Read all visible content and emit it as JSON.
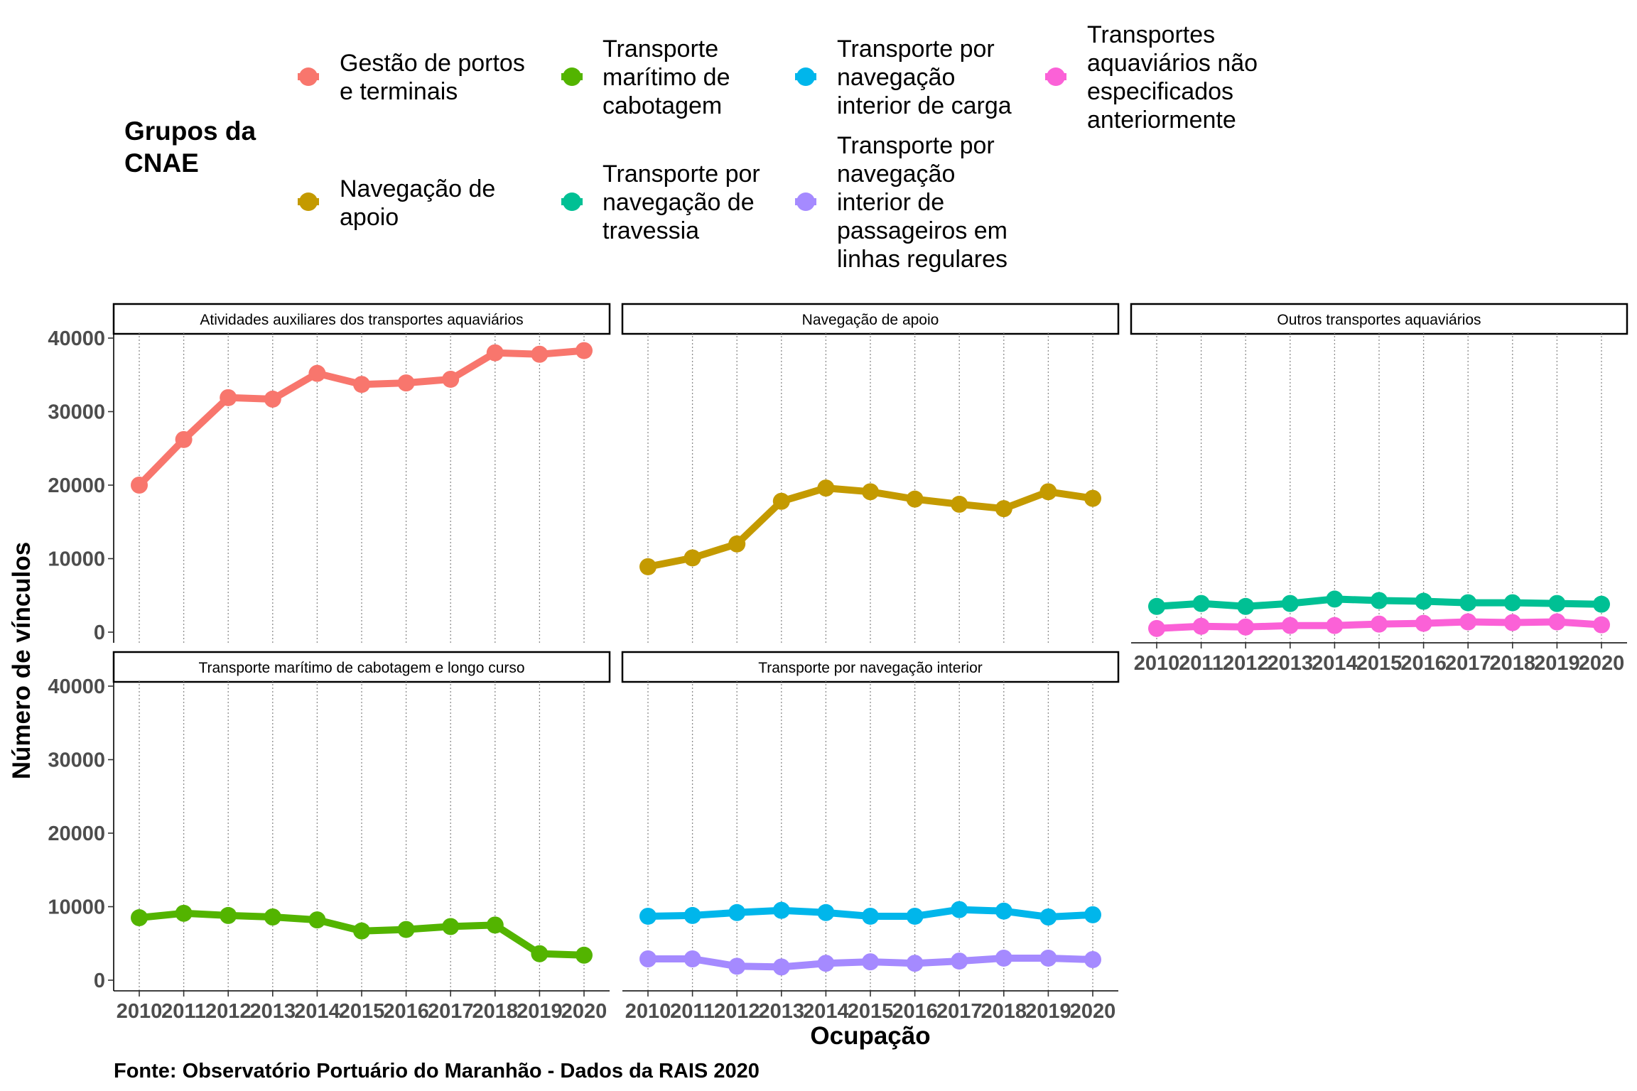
{
  "chart_data": {
    "type": "line",
    "xlabel": "Ocupação",
    "ylabel": "Número de vínculos",
    "caption": "Fonte: Observatório Portuário do Maranhão - Dados da RAIS 2020",
    "legend": {
      "title": [
        "Grupos da",
        "CNAE"
      ],
      "placement": "top",
      "entries": [
        {
          "key": "gestao",
          "lines": [
            "Gestão de portos",
            "e terminais"
          ],
          "color": "#F8766D"
        },
        {
          "key": "navapoio",
          "lines": [
            "Navegação de",
            "apoio"
          ],
          "color": "#C49A00"
        },
        {
          "key": "cabotagem",
          "lines": [
            "Transporte",
            "marítimo de",
            "cabotagem"
          ],
          "color": "#53B400"
        },
        {
          "key": "travessia",
          "lines": [
            "Transporte por",
            "navegação de",
            "travessia"
          ],
          "color": "#00C094"
        },
        {
          "key": "carga",
          "lines": [
            "Transporte por",
            "navegação",
            "interior de carga"
          ],
          "color": "#00B6EB"
        },
        {
          "key": "passageiros",
          "lines": [
            "Transporte por",
            "navegação",
            "interior de",
            "passageiros em",
            "linhas regulares"
          ],
          "color": "#A58AFF"
        },
        {
          "key": "naoespec",
          "lines": [
            "Transportes",
            "aquaviários não",
            "especificados",
            "anteriormente"
          ],
          "color": "#FB61D7"
        }
      ]
    },
    "x": [
      2010,
      2011,
      2012,
      2013,
      2014,
      2015,
      2016,
      2017,
      2018,
      2019,
      2020
    ],
    "ylim": [
      0,
      40000
    ],
    "yticks": [
      0,
      10000,
      20000,
      30000,
      40000
    ],
    "grid": "vertical dotted",
    "panels": [
      {
        "title": "Atividades auxiliares dos transportes aquaviários",
        "series": [
          {
            "group": "gestao",
            "values": [
              20000,
              26200,
              31900,
              31700,
              35200,
              33700,
              33900,
              34400,
              38000,
              37800,
              38300
            ]
          }
        ]
      },
      {
        "title": "Navegação de apoio",
        "series": [
          {
            "group": "navapoio",
            "values": [
              8900,
              10100,
              12000,
              17800,
              19600,
              19100,
              18100,
              17400,
              16800,
              19100,
              18200
            ]
          }
        ]
      },
      {
        "title": "Outros transportes aquaviários",
        "series": [
          {
            "group": "travessia",
            "values": [
              3500,
              3900,
              3500,
              3900,
              4500,
              4300,
              4200,
              4000,
              4000,
              3900,
              3800
            ]
          },
          {
            "group": "naoespec",
            "values": [
              500,
              800,
              700,
              900,
              900,
              1100,
              1200,
              1400,
              1300,
              1400,
              1000
            ]
          }
        ]
      },
      {
        "title": "Transporte marítimo de cabotagem e longo curso",
        "series": [
          {
            "group": "cabotagem",
            "values": [
              8500,
              9100,
              8800,
              8600,
              8200,
              6700,
              6900,
              7300,
              7500,
              3600,
              3400
            ]
          }
        ]
      },
      {
        "title": "Transporte por navegação interior",
        "series": [
          {
            "group": "carga",
            "values": [
              8700,
              8800,
              9200,
              9500,
              9200,
              8700,
              8700,
              9600,
              9400,
              8600,
              8900
            ]
          },
          {
            "group": "passageiros",
            "values": [
              2900,
              2900,
              1900,
              1800,
              2300,
              2500,
              2300,
              2600,
              3000,
              3000,
              2800
            ]
          }
        ]
      }
    ]
  }
}
